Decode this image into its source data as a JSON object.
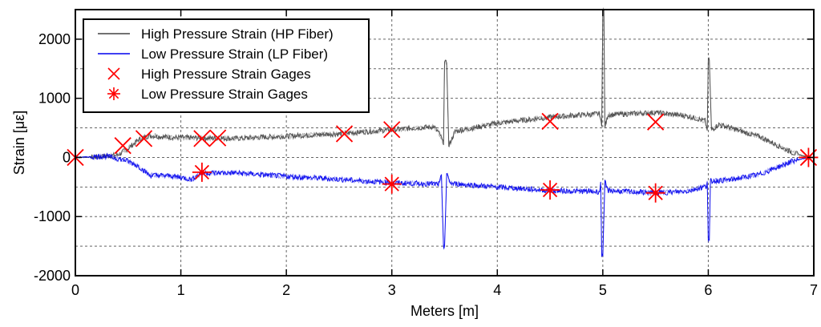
{
  "chart_data": {
    "type": "line",
    "title": "",
    "xlabel": "Meters [m]",
    "ylabel": "Strain [με]",
    "xlim": [
      0,
      7
    ],
    "ylim": [
      -2000,
      2500
    ],
    "xticks": [
      0,
      1,
      2,
      3,
      4,
      5,
      6,
      7
    ],
    "xtick_labels": [
      "0",
      "1",
      "2",
      "3",
      "4",
      "5",
      "6",
      "7"
    ],
    "yticks": [
      -2000,
      -1000,
      0,
      1000,
      2000
    ],
    "ytick_labels": [
      "-2000",
      "-1000",
      "0",
      "1000",
      "2000"
    ],
    "grid": true,
    "grid_style": "dotted",
    "legend_position": "top-left",
    "series": [
      {
        "name": "High Pressure Strain (HP Fiber)",
        "kind": "line",
        "color": "#444444",
        "noise": 45,
        "points": [
          [
            0,
            0
          ],
          [
            0.2,
            10
          ],
          [
            0.4,
            40
          ],
          [
            0.5,
            150
          ],
          [
            0.6,
            300
          ],
          [
            0.7,
            370
          ],
          [
            0.9,
            340
          ],
          [
            1.2,
            330
          ],
          [
            1.5,
            320
          ],
          [
            2.0,
            360
          ],
          [
            2.5,
            400
          ],
          [
            3.0,
            470
          ],
          [
            3.4,
            520
          ],
          [
            3.46,
            380
          ],
          [
            3.49,
            220
          ],
          [
            3.5,
            1600
          ],
          [
            3.52,
            1600
          ],
          [
            3.54,
            200
          ],
          [
            3.6,
            440
          ],
          [
            4.0,
            580
          ],
          [
            4.5,
            680
          ],
          [
            4.97,
            740
          ],
          [
            4.99,
            520
          ],
          [
            5.0,
            2500
          ],
          [
            5.01,
            2500
          ],
          [
            5.02,
            520
          ],
          [
            5.05,
            720
          ],
          [
            5.5,
            760
          ],
          [
            5.8,
            700
          ],
          [
            5.97,
            620
          ],
          [
            5.99,
            460
          ],
          [
            6.0,
            1650
          ],
          [
            6.01,
            1650
          ],
          [
            6.03,
            460
          ],
          [
            6.1,
            560
          ],
          [
            6.5,
            340
          ],
          [
            6.8,
            80
          ],
          [
            6.95,
            0
          ]
        ]
      },
      {
        "name": "Low Pressure Strain (LP Fiber)",
        "kind": "line",
        "color": "#0000ee",
        "noise": 45,
        "points": [
          [
            0,
            0
          ],
          [
            0.3,
            20
          ],
          [
            0.5,
            -60
          ],
          [
            0.6,
            -150
          ],
          [
            0.7,
            -300
          ],
          [
            0.9,
            -310
          ],
          [
            1.1,
            -370
          ],
          [
            1.2,
            -260
          ],
          [
            1.5,
            -260
          ],
          [
            2.0,
            -320
          ],
          [
            2.5,
            -370
          ],
          [
            3.0,
            -430
          ],
          [
            3.45,
            -450
          ],
          [
            3.47,
            -300
          ],
          [
            3.49,
            -1500
          ],
          [
            3.5,
            -1500
          ],
          [
            3.52,
            -290
          ],
          [
            3.56,
            -440
          ],
          [
            4.0,
            -500
          ],
          [
            4.5,
            -560
          ],
          [
            4.97,
            -580
          ],
          [
            4.98,
            -420
          ],
          [
            4.99,
            -1650
          ],
          [
            5.0,
            -1650
          ],
          [
            5.02,
            -420
          ],
          [
            5.05,
            -560
          ],
          [
            5.5,
            -600
          ],
          [
            5.8,
            -570
          ],
          [
            5.98,
            -490
          ],
          [
            5.99,
            -400
          ],
          [
            6.0,
            -1400
          ],
          [
            6.01,
            -1400
          ],
          [
            6.02,
            -400
          ],
          [
            6.2,
            -380
          ],
          [
            6.5,
            -280
          ],
          [
            6.8,
            -60
          ],
          [
            6.95,
            0
          ]
        ]
      },
      {
        "name": "High Pressure Strain Gages",
        "kind": "marker",
        "marker": "x",
        "color": "#ff0000",
        "points": [
          [
            0,
            0
          ],
          [
            0.45,
            200
          ],
          [
            0.65,
            320
          ],
          [
            1.2,
            320
          ],
          [
            1.35,
            330
          ],
          [
            2.55,
            400
          ],
          [
            3.0,
            470
          ],
          [
            4.5,
            610
          ],
          [
            5.5,
            600
          ],
          [
            6.95,
            0
          ]
        ]
      },
      {
        "name": "Low Pressure Strain Gages",
        "kind": "marker",
        "marker": "asterisk",
        "color": "#ff0000",
        "points": [
          [
            1.2,
            -250
          ],
          [
            3.0,
            -450
          ],
          [
            4.5,
            -550
          ],
          [
            5.5,
            -600
          ],
          [
            6.95,
            0
          ]
        ]
      }
    ]
  }
}
